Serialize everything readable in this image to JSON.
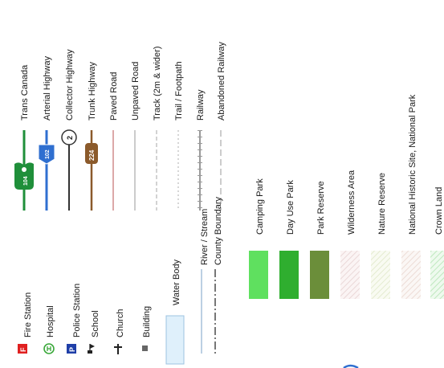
{
  "legend": {
    "road_types": [
      {
        "label": "Trans Canada",
        "color": "#1f8f3a"
      },
      {
        "label": "Arterial Highway",
        "color": "#2f6fd0"
      },
      {
        "label": "Collector Highway",
        "color": "#333333"
      },
      {
        "label": "Trunk Highway",
        "color": "#8b5a2b"
      },
      {
        "label": "Paved Road",
        "color": "#d08a8a"
      },
      {
        "label": "Unpaved Road",
        "color": "#bbbbbb"
      },
      {
        "label": "Track (2m & wider)",
        "color": "#bbbbbb"
      },
      {
        "label": "Trail / Footpath",
        "color": "#bbbbbb"
      },
      {
        "label": "Railway",
        "color": "#999999"
      },
      {
        "label": "Abandoned Railway",
        "color": "#999999"
      }
    ],
    "shields": {
      "trans_canada": "104",
      "arterial": "102",
      "collector": "2",
      "trunk": "224"
    },
    "points": [
      {
        "label": "Fire Station",
        "icon": "fire-station-icon",
        "symbol": "F",
        "color": "#e02020"
      },
      {
        "label": "Hospital",
        "icon": "hospital-icon",
        "color": "#3aa83a"
      },
      {
        "label": "Police Station",
        "icon": "police-station-icon",
        "symbol": "P",
        "color": "#1f3fa8"
      },
      {
        "label": "School",
        "icon": "school-icon"
      },
      {
        "label": "Church",
        "icon": "church-icon"
      },
      {
        "label": "Building",
        "icon": "building-icon"
      }
    ],
    "water": [
      {
        "label": "Water Body",
        "color": "#dff0fb"
      },
      {
        "label": "River / Stream",
        "color": "#8fb0d0"
      },
      {
        "label": "County Boundary",
        "color": "#777777"
      }
    ],
    "areas": [
      {
        "label": "Camping Park",
        "color": "#5fe05f"
      },
      {
        "label": "Day Use Park",
        "color": "#2fae2f"
      },
      {
        "label": "Park Reserve",
        "color": "#6b8e3a"
      },
      {
        "label": "Wilderness Area",
        "color": "#f3e6e6"
      },
      {
        "label": "Nature Reserve",
        "color": "#eef3e0"
      },
      {
        "label": "National Historic Site, National Park",
        "color": "#f3ecea"
      },
      {
        "label": "Crown Land",
        "color": "#d6f2d6"
      }
    ]
  }
}
